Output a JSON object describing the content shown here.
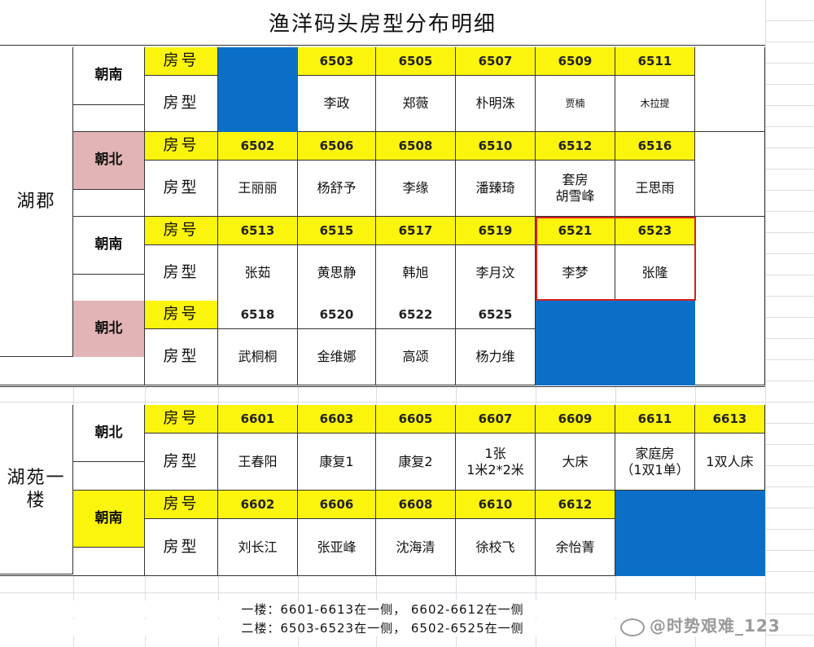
{
  "title": "渔洋码头房型分布明细",
  "labels": {
    "room_no": "房号",
    "room_type": "房型"
  },
  "sections": {
    "huqun": {
      "name": "湖郡",
      "groups": [
        {
          "orientation": "朝南",
          "numbers": [
            "",
            "6503",
            "6505",
            "6507",
            "6509",
            "6511"
          ],
          "types": [
            "",
            "李政",
            "郑薇",
            "朴明洙",
            "贾楠",
            "木拉提"
          ]
        },
        {
          "orientation": "朝北",
          "numbers": [
            "6502",
            "6506",
            "6508",
            "6510",
            "6512",
            "6516"
          ],
          "types": [
            "王丽丽",
            "杨舒予",
            "李缘",
            "潘臻琦",
            "套房\n胡雪峰",
            "王思雨"
          ]
        },
        {
          "orientation": "朝南",
          "numbers": [
            "6513",
            "6515",
            "6517",
            "6519",
            "6521",
            "6523"
          ],
          "types": [
            "张茹",
            "黄思静",
            "韩旭",
            "李月汶",
            "李梦",
            "张隆"
          ]
        },
        {
          "orientation": "朝北",
          "numbers": [
            "6518",
            "6520",
            "6522",
            "6525",
            "",
            ""
          ],
          "types": [
            "武桐桐",
            "金维娜",
            "高颂",
            "杨力维",
            "",
            ""
          ]
        }
      ]
    },
    "huyuan": {
      "name": "湖苑一楼",
      "groups": [
        {
          "orientation": "朝北",
          "numbers": [
            "6601",
            "6603",
            "6605",
            "6607",
            "6609",
            "6611",
            "6613"
          ],
          "types": [
            "王春阳",
            "康复1",
            "康复2",
            "1张\n1米2*2米",
            "大床",
            "家庭房\n（1双1单）",
            "1双人床"
          ]
        },
        {
          "orientation": "朝南",
          "numbers": [
            "6602",
            "6606",
            "6608",
            "6610",
            "6612",
            "",
            ""
          ],
          "types": [
            "刘长江",
            "张亚峰",
            "沈海清",
            "徐校飞",
            "余怡菁",
            "",
            ""
          ]
        }
      ]
    }
  },
  "notes": [
    "一楼：6601-6613在一侧，  6602-6612在一侧",
    "二楼：6503-6523在一侧，  6502-6525在一侧"
  ],
  "watermark": "@时势艰难_123",
  "colors": {
    "yellow": "#fbf40d",
    "pink": "#e3b4b5",
    "blue": "#0b6fc7",
    "highlight_border": "#d62020"
  }
}
